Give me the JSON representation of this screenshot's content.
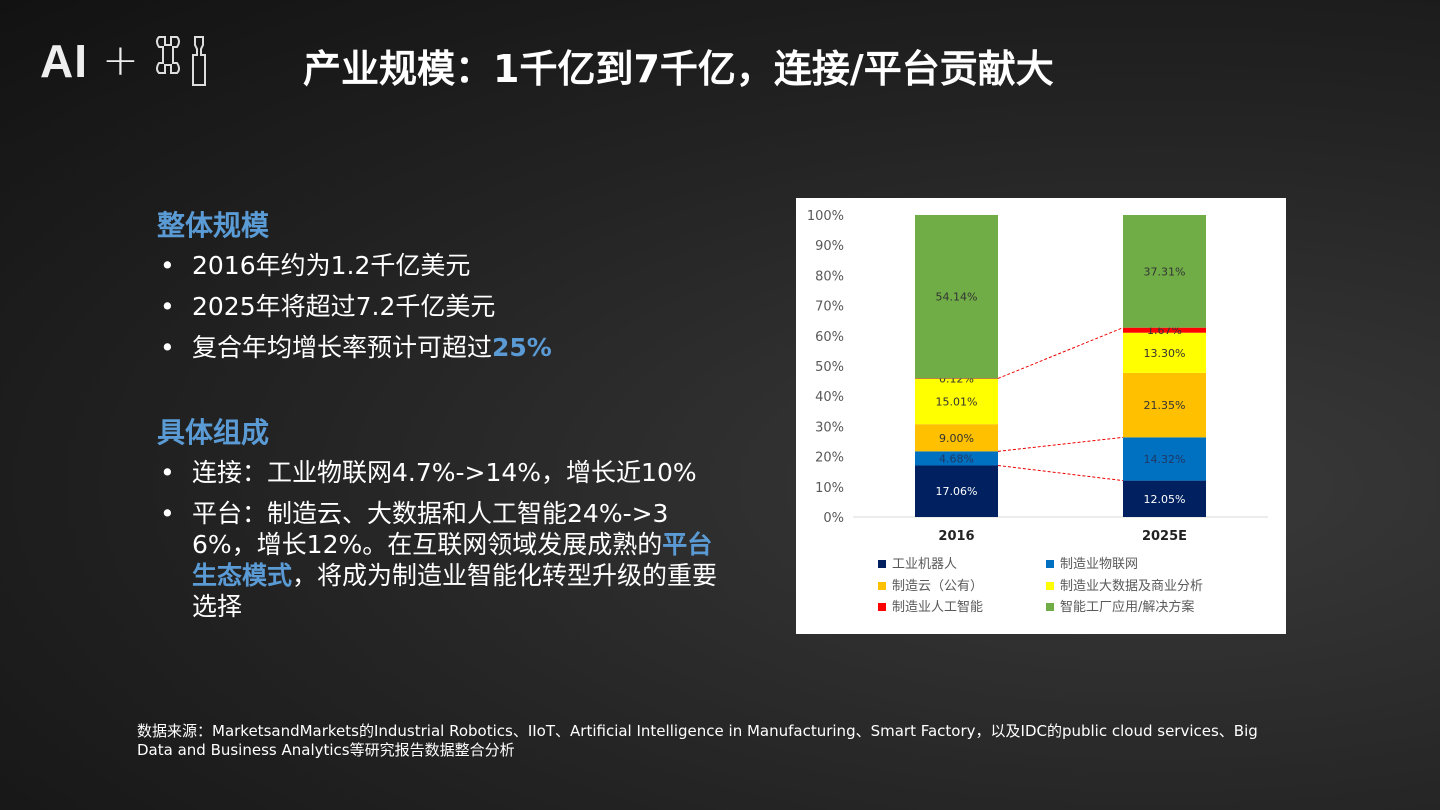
{
  "logo": {
    "text": "AI",
    "plus": "+",
    "icon": "wrench-screwdriver-icon"
  },
  "title": "产业规模：1千亿到7千亿，连接/平台贡献大",
  "section1": {
    "heading": "整体规模",
    "bullets": [
      "2016年约为1.2千亿美元",
      "2025年将超过7.2千亿美元"
    ],
    "b3_pre": "复合年均增长率预计可超过",
    "b3_hl": "25%"
  },
  "section2": {
    "heading": "具体组成",
    "b1": "连接：工业物联网4.7%->14%，增长近10%",
    "b2_pre": "平台：制造云、大数据和人工智能24%->36%，增长12%。在互联网领域发展成熟的",
    "b2_hl": "平台生态模式",
    "b2_post": "，将成为制造业智能化转型升级的重要选择"
  },
  "source": "数据来源：MarketsandMarkets的Industrial Robotics、IIoT、Artificial Intelligence in Manufacturing、Smart Factory，以及IDC的public cloud services、Big Data and Business Analytics等研究报告数据整合分析",
  "chart_data": {
    "type": "bar",
    "stacked": true,
    "ylim": [
      0,
      100
    ],
    "yticks": [
      "0%",
      "10%",
      "20%",
      "30%",
      "40%",
      "50%",
      "60%",
      "70%",
      "80%",
      "90%",
      "100%"
    ],
    "categories": [
      "2016",
      "2025E"
    ],
    "series": [
      {
        "name": "工业机器人",
        "color": "#002060",
        "labelColor": "#ffffff",
        "values": [
          17.06,
          12.05
        ],
        "labels": [
          "17.06%",
          "12.05%"
        ]
      },
      {
        "name": "制造业物联网",
        "color": "#0070c0",
        "labelColor": "#1f3864",
        "values": [
          4.68,
          14.32
        ],
        "labels": [
          "4.68%",
          "14.32%"
        ]
      },
      {
        "name": "制造云（公有）",
        "color": "#ffc000",
        "labelColor": "#333333",
        "values": [
          9.0,
          21.35
        ],
        "labels": [
          "9.00%",
          "21.35%"
        ]
      },
      {
        "name": "制造业大数据及商业分析",
        "color": "#ffff00",
        "labelColor": "#333333",
        "values": [
          15.01,
          13.3
        ],
        "labels": [
          "15.01%",
          "13.30%"
        ]
      },
      {
        "name": "制造业人工智能",
        "color": "#ff0000",
        "labelColor": "#333333",
        "values": [
          0.12,
          1.67
        ],
        "labels": [
          "0.12%",
          "1.67%"
        ]
      },
      {
        "name": "智能工厂应用/解决方案",
        "color": "#70ad47",
        "labelColor": "#333333",
        "values": [
          54.14,
          37.31
        ],
        "labels": [
          "54.14%",
          "37.31%"
        ]
      }
    ],
    "connectors_after_series": [
      0,
      1,
      4
    ],
    "legend": "bottom"
  }
}
